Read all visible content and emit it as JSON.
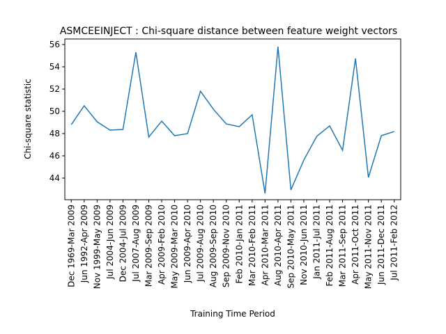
{
  "chart_data": {
    "type": "line",
    "title": "ASMCEEINJECT : Chi-square distance between feature weight vectors",
    "x_label": "Training Time Period",
    "y_label": "Chi-square statistic",
    "categories": [
      "Dec 1969-Mar 2009",
      "Jun 1992-Apr 2009",
      "Nov 1999-May 2009",
      "Jul 2004-Jun 2009",
      "Dec 2004-Jul 2009",
      "Jul 2007-Aug 2009",
      "Mar 2009-Sep 2009",
      "Apr 2009-Feb 2010",
      "May 2009-Mar 2010",
      "Jun 2009-Apr 2010",
      "Jul 2009-Aug 2010",
      "Aug 2009-Sep 2010",
      "Sep 2009-Nov 2010",
      "Feb 2010-Jan 2011",
      "Mar 2010-Feb 2011",
      "Apr 2010-Mar 2011",
      "Aug 2010-Apr 2011",
      "Sep 2010-May 2011",
      "Nov 2010-Jun 2011",
      "Jan 2011-Jul 2011",
      "Feb 2011-Aug 2011",
      "Mar 2011-Sep 2011",
      "Apr 2011-Oct 2011",
      "May 2011-Nov 2011",
      "Jun 2011-Dec 2011",
      "Jul 2011-Feb 2012"
    ],
    "series": [
      {
        "name": "Chi-square statistic",
        "color": "#1f77b4",
        "values": [
          48.81,
          50.5,
          49.06,
          48.31,
          48.37,
          55.31,
          47.69,
          49.12,
          47.81,
          48.0,
          51.81,
          50.19,
          48.87,
          48.62,
          49.69,
          42.62,
          55.81,
          42.94,
          45.62,
          47.75,
          48.69,
          46.5,
          54.75,
          44.06,
          47.81,
          48.19
        ]
      }
    ],
    "ylim": [
      42.06,
      56.5
    ],
    "yticks": [
      44,
      46,
      48,
      50,
      52,
      54,
      56
    ]
  }
}
